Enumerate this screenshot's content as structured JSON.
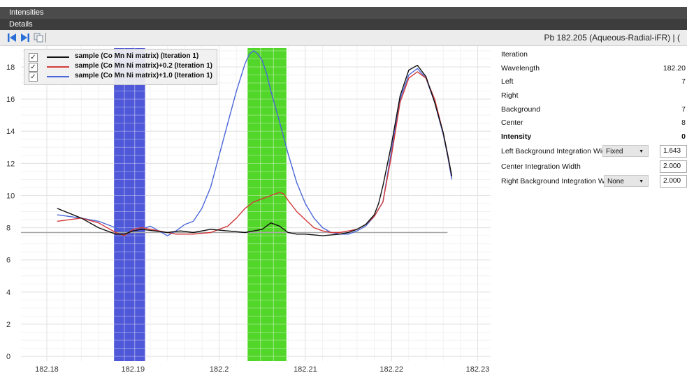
{
  "window": {
    "title": "Intensities",
    "details_label": "Details"
  },
  "toolbar": {
    "element_title": "Pb 182.205 (Aqueous-Radial-iFR) | (",
    "buttons": [
      "first-icon",
      "next-icon",
      "copy-icon"
    ]
  },
  "legend": [
    {
      "label": "sample (Co Mn Ni matrix) (Iteration 1)",
      "color": "#111111",
      "checked": "✓"
    },
    {
      "label": "sample (Co Mn Ni matrix)+0.2 (Iteration 1)",
      "color": "#d43a3a",
      "checked": "✓"
    },
    {
      "label": "sample (Co Mn Ni matrix)+1.0 (Iteration 1)",
      "color": "#4a66d8",
      "checked": "✓"
    }
  ],
  "properties": {
    "iteration": {
      "label": "Iteration",
      "value": ""
    },
    "wavelength": {
      "label": "Wavelength",
      "value": "182.20"
    },
    "left": {
      "label": "Left",
      "value": "7"
    },
    "right": {
      "label": "Right",
      "value": ""
    },
    "background": {
      "label": "Background",
      "value": "7"
    },
    "center": {
      "label": "Center",
      "value": "8"
    },
    "intensity": {
      "label": "Intensity",
      "value": "0"
    },
    "left_bg_width": {
      "label": "Left Background Integration Width",
      "mode": "Fixed",
      "value": "1.643"
    },
    "center_width": {
      "label": "Center Integration Width",
      "value": "2.000"
    },
    "right_bg_width": {
      "label": "Right Background Integration Width",
      "mode": "None",
      "value": "2.000"
    }
  },
  "chart_data": {
    "type": "line",
    "title": "",
    "xlabel": "",
    "ylabel": "",
    "xlim": [
      182.177,
      182.2315
    ],
    "ylim": [
      -0.3,
      19.3
    ],
    "x_ticks": [
      182.18,
      182.19,
      182.2,
      182.21,
      182.22,
      182.23
    ],
    "x_tick_labels": [
      "182.18",
      "182.19",
      "182.2",
      "182.21",
      "182.22",
      "182.23"
    ],
    "y_ticks": [
      0,
      2,
      4,
      6,
      8,
      10,
      12,
      14,
      16,
      18
    ],
    "y_tick_labels": [
      "0",
      "2",
      "4",
      "6",
      "8",
      "10",
      "12",
      "14",
      "16",
      "18"
    ],
    "grid": true,
    "legend_position": "top-left",
    "baseline": {
      "value": 7.7,
      "color": "#a8a8a8"
    },
    "regions": [
      {
        "name": "left-background",
        "x": [
          182.1878,
          182.1914
        ],
        "color": "#4f58d8"
      },
      {
        "name": "center",
        "x": [
          182.2033,
          182.2078
        ],
        "color": "#52d629"
      }
    ],
    "series": [
      {
        "name": "sample (Co Mn Ni matrix) (Iteration 1)",
        "color": "#111111",
        "x": [
          182.1812,
          182.184,
          182.186,
          182.188,
          182.189,
          182.19,
          182.191,
          182.1925,
          182.194,
          182.1955,
          182.197,
          182.199,
          182.201,
          182.203,
          182.205,
          182.206,
          182.207,
          182.208,
          182.209,
          182.21,
          182.212,
          182.214,
          182.215,
          182.216,
          182.217,
          182.218,
          182.2185,
          182.219,
          182.22,
          182.221,
          182.222,
          182.223,
          182.224,
          182.225,
          182.226,
          182.2265,
          182.227
        ],
        "y": [
          9.2,
          8.6,
          8.0,
          7.6,
          7.6,
          7.8,
          7.9,
          7.8,
          7.7,
          7.8,
          7.7,
          7.9,
          7.8,
          7.7,
          7.9,
          8.3,
          8.1,
          7.7,
          7.6,
          7.6,
          7.5,
          7.6,
          7.7,
          7.9,
          8.2,
          8.8,
          9.5,
          10.6,
          13.2,
          16.2,
          17.8,
          18.1,
          17.4,
          15.8,
          13.9,
          12.6,
          11.2
        ]
      },
      {
        "name": "sample (Co Mn Ni matrix)+0.2 (Iteration 1)",
        "color": "#d43a3a",
        "x": [
          182.1812,
          182.184,
          182.186,
          182.188,
          182.189,
          182.19,
          182.191,
          182.193,
          182.195,
          182.197,
          182.199,
          182.201,
          182.202,
          182.203,
          182.204,
          182.205,
          182.206,
          182.207,
          182.2075,
          182.208,
          182.209,
          182.21,
          182.211,
          182.212,
          182.213,
          182.214,
          182.215,
          182.216,
          182.217,
          182.218,
          182.219,
          182.22,
          182.221,
          182.222,
          182.223,
          182.224,
          182.225,
          182.226,
          182.2265,
          182.227
        ],
        "y": [
          8.4,
          8.6,
          8.3,
          7.7,
          7.5,
          7.9,
          8.0,
          7.8,
          7.6,
          7.6,
          7.7,
          8.1,
          8.6,
          9.2,
          9.6,
          9.8,
          10.0,
          10.2,
          10.1,
          9.7,
          9.0,
          8.5,
          8.0,
          7.8,
          7.7,
          7.7,
          7.8,
          7.9,
          8.2,
          8.7,
          9.6,
          12.5,
          15.8,
          17.3,
          17.7,
          17.3,
          16.0,
          13.9,
          12.6,
          11.2
        ]
      },
      {
        "name": "sample (Co Mn Ni matrix)+1.0 (Iteration 1)",
        "color": "#4a66d8",
        "x": [
          182.1812,
          182.184,
          182.186,
          182.188,
          182.189,
          182.19,
          182.191,
          182.192,
          182.193,
          182.194,
          182.195,
          182.196,
          182.197,
          182.198,
          182.199,
          182.2,
          182.201,
          182.202,
          182.203,
          182.2035,
          182.204,
          182.2045,
          182.205,
          182.2055,
          182.206,
          182.207,
          182.208,
          182.209,
          182.21,
          182.211,
          182.212,
          182.213,
          182.214,
          182.215,
          182.216,
          182.217,
          182.218,
          182.219,
          182.22,
          182.221,
          182.222,
          182.223,
          182.224,
          182.225,
          182.226,
          182.2265,
          182.227
        ],
        "y": [
          8.8,
          8.6,
          8.4,
          8.0,
          7.8,
          7.8,
          7.9,
          8.1,
          7.8,
          7.5,
          7.8,
          8.2,
          8.4,
          9.2,
          10.5,
          12.5,
          14.5,
          16.5,
          18.2,
          18.8,
          19.0,
          18.8,
          18.4,
          17.6,
          16.5,
          14.6,
          12.6,
          10.8,
          9.5,
          8.6,
          8.0,
          7.7,
          7.6,
          7.6,
          7.8,
          8.1,
          8.7,
          9.6,
          12.8,
          16.0,
          17.5,
          17.9,
          17.3,
          15.8,
          13.8,
          12.5,
          11.0
        ]
      }
    ]
  }
}
